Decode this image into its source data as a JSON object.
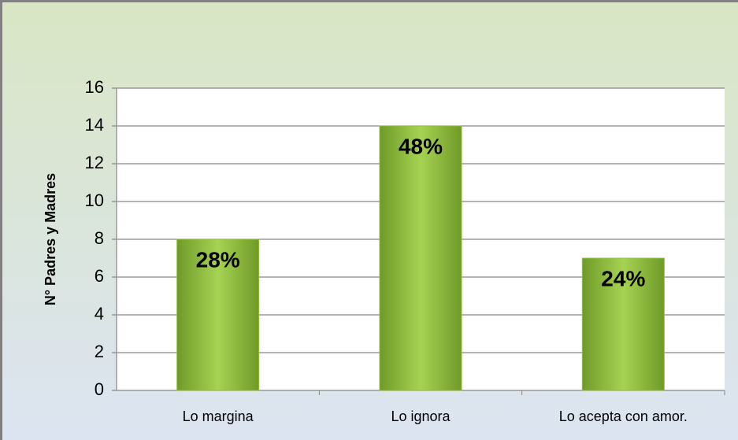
{
  "chart_data": {
    "type": "bar",
    "y_label": "N° Padres y Madres",
    "categories": [
      "Lo margina",
      "Lo ignora",
      "Lo acepta con amor."
    ],
    "values": [
      8,
      14,
      7
    ],
    "annotations": [
      "28%",
      "48%",
      "24%"
    ],
    "color": "#8fbf3a",
    "ylim": [
      0,
      16
    ],
    "yticks": [
      0,
      2,
      4,
      6,
      8,
      10,
      12,
      14,
      16
    ],
    "grid": true
  }
}
